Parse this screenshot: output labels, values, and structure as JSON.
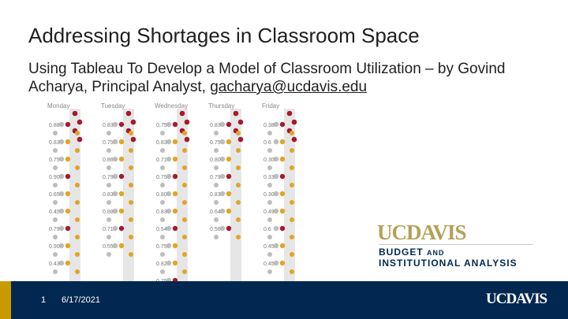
{
  "slide": {
    "title": "Addressing Shortages in Classroom Space",
    "subtitle_text": "Using Tableau To Develop a Model of Classroom Utilization – by Govind Acharya, Principal Analyst, ",
    "email": "gacharya@ucdavis.edu"
  },
  "visualization": {
    "columns": [
      {
        "day": "Monday",
        "labels": [
          "0.88",
          "0.83",
          "0.75",
          "0.90",
          "0.65",
          "0.45",
          "0.79",
          "0.90",
          "0.43"
        ]
      },
      {
        "day": "Tuesday",
        "labels": [
          "0.83",
          "0.75",
          "0.86",
          "0.79",
          "0.83",
          "0.88",
          "0.71",
          "0.55"
        ]
      },
      {
        "day": "Wednesday",
        "labels": [
          "0.75",
          "0.83",
          "0.71",
          "0.75",
          "0.80",
          "0.83",
          "0.54",
          "0.75",
          "0.82",
          "0.75"
        ]
      },
      {
        "day": "Thursday",
        "labels": [
          "0.83",
          "0.75",
          "0.80",
          "0.79",
          "0.83",
          "0.64",
          "0.56"
        ]
      },
      {
        "day": "Friday",
        "labels": [
          "0.38",
          "0.6",
          "0.30",
          "0.33",
          "0.30",
          "0.49",
          "0.6",
          "0.45",
          "0.45"
        ]
      }
    ],
    "colors": {
      "red": "#a6192e",
      "orange": "#e0a526",
      "grey": "#bdbdbd",
      "band": "#e6e6e6"
    }
  },
  "logo": {
    "line1_uc": "UC",
    "line1_davis": "DAVIS",
    "line2": "BUDGET",
    "line2_and": "AND",
    "line3": "INSTITUTIONAL ANALYSIS",
    "brand_gold": "#b5a157",
    "brand_navy": "#022851"
  },
  "footer": {
    "page_number": "1",
    "date": "6/17/2021",
    "logo_text": "UCDAVIS",
    "bar_color": "#022851",
    "accent_color": "#c99a00"
  }
}
